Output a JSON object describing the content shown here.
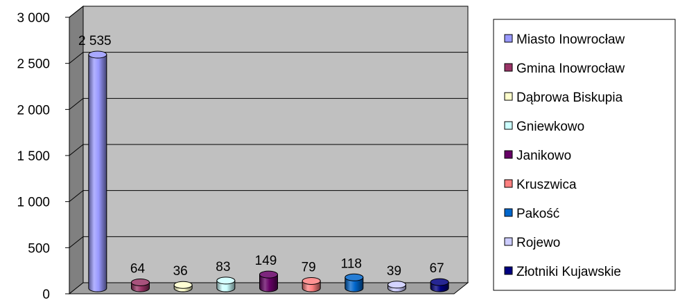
{
  "chart_data": {
    "type": "bar",
    "categories": [
      "Miasto Inowrocław",
      "Gmina Inowrocław",
      "Dąbrowa Biskupia",
      "Gniewkowo",
      "Janikowo",
      "Kruszwica",
      "Pakość",
      "Rojewo",
      "Złotniki Kujawskie"
    ],
    "values": [
      2535,
      64,
      36,
      83,
      149,
      79,
      118,
      39,
      67
    ],
    "value_labels": [
      "2 535",
      "64",
      "36",
      "83",
      "149",
      "79",
      "118",
      "39",
      "67"
    ],
    "colors": [
      "#9999ff",
      "#993366",
      "#ffffcc",
      "#ccffff",
      "#660066",
      "#ff8080",
      "#0066cc",
      "#ccccff",
      "#000080"
    ],
    "ylim": [
      0,
      3000
    ],
    "yticks": [
      {
        "value": 0,
        "label": "0"
      },
      {
        "value": 500,
        "label": "500"
      },
      {
        "value": 1000,
        "label": "1 000"
      },
      {
        "value": 1500,
        "label": "1 500"
      },
      {
        "value": 2000,
        "label": "2 000"
      },
      {
        "value": 2500,
        "label": "2 500"
      },
      {
        "value": 3000,
        "label": "3 000"
      }
    ],
    "grid": true,
    "legend_position": "right",
    "title": "",
    "xlabel": "",
    "ylabel": ""
  }
}
